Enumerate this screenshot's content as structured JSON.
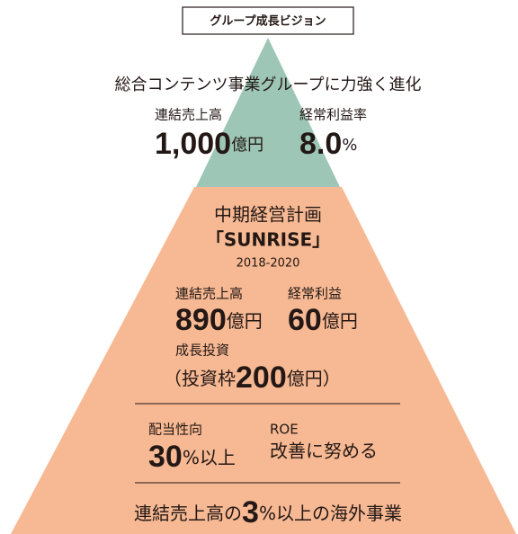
{
  "header": {
    "title": "グループ成長ビジョン"
  },
  "top": {
    "headline": "総合コンテンツ事業グループに力強く進化",
    "items": [
      {
        "label": "連結売上高",
        "value": "1,000",
        "unit": "億円"
      },
      {
        "label": "経常利益率",
        "value": "8.0",
        "unit": "%"
      }
    ]
  },
  "plan": {
    "title": "中期経営計画",
    "name": "「SUNRISE」",
    "period": "2018-2020",
    "items": [
      {
        "label": "連結売上高",
        "value": "890",
        "unit": "億円"
      },
      {
        "label": "経常利益",
        "value": "60",
        "unit": "億円"
      }
    ],
    "investment": {
      "label": "成長投資",
      "prefix": "（投資枠",
      "value": "200",
      "unit": "億円）"
    },
    "returns": [
      {
        "label": "配当性向",
        "value": "30",
        "unit": "%以上"
      },
      {
        "label": "ROE",
        "text": "改善に努める"
      }
    ],
    "overseas": {
      "prefix": "連結売上高の",
      "value": "3",
      "unit": "%以上の海外事業"
    }
  }
}
